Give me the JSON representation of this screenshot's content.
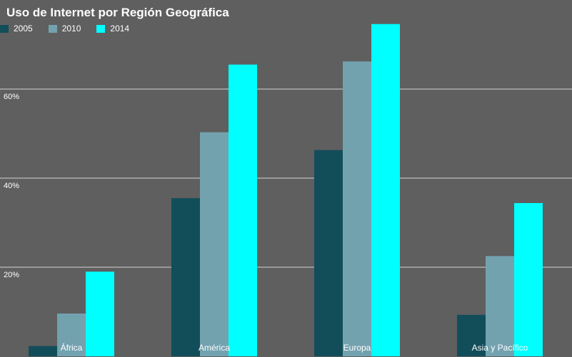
{
  "chart_data": {
    "type": "bar",
    "title": "Uso de Internet por Región Geográfica",
    "categories": [
      "África",
      "América",
      "Europa",
      "Asia y Pacífico"
    ],
    "series": [
      {
        "name": "2005",
        "color": "#124d5a",
        "values": [
          2.3,
          35.5,
          46.3,
          9.3
        ]
      },
      {
        "name": "2010",
        "color": "#73a2af",
        "values": [
          9.6,
          50.3,
          66.2,
          22.5
        ]
      },
      {
        "name": "2014",
        "color": "#00ffff",
        "values": [
          19.0,
          65.5,
          74.6,
          34.4
        ]
      }
    ],
    "ylim": [
      0,
      80
    ],
    "yticks": [
      20,
      40,
      60
    ],
    "ytick_labels": [
      "20%",
      "40%",
      "60%"
    ],
    "grid": true,
    "legend": "top-left",
    "xlabel": "",
    "ylabel": ""
  }
}
